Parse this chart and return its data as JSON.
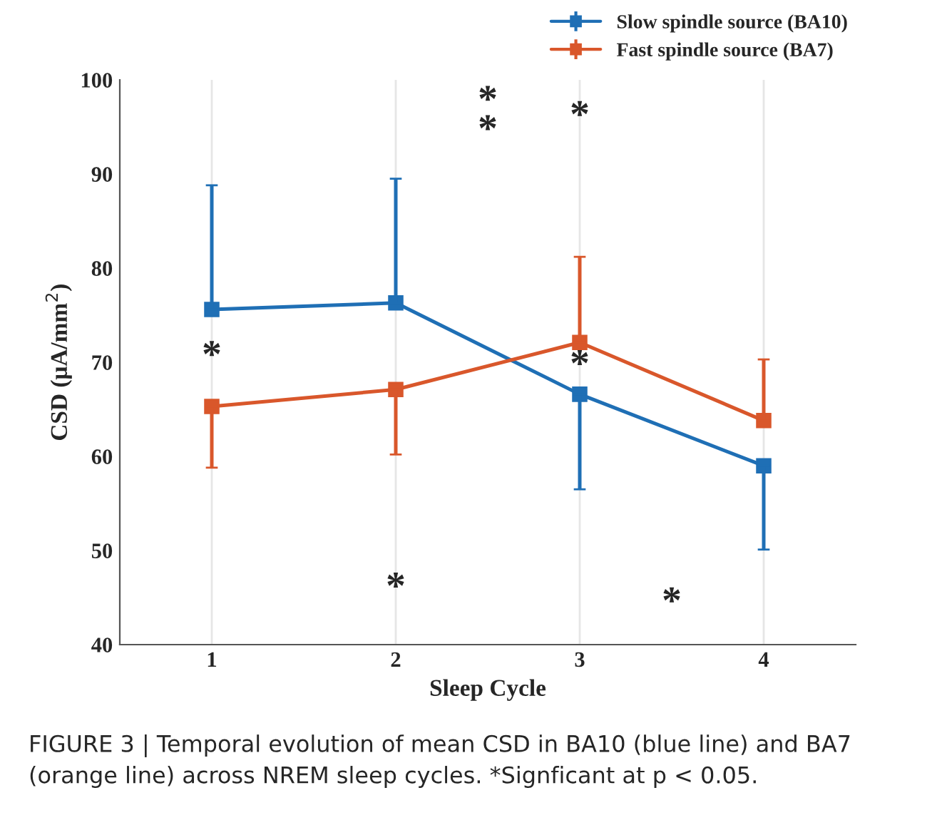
{
  "chart_data": {
    "type": "line",
    "xlabel": "Sleep Cycle",
    "ylabel": "CSD (μA/mm$^{2}$)",
    "x": [
      1,
      2,
      3,
      4
    ],
    "series": [
      {
        "name": "Slow spindle source (BA10)",
        "color": "#1f6fb5",
        "values": [
          75.6,
          76.3,
          66.6,
          59.0
        ],
        "errors": [
          [
            75.6,
            88.8
          ],
          [
            76.3,
            89.5
          ],
          [
            56.5,
            66.6
          ],
          [
            50.1,
            59.0
          ]
        ]
      },
      {
        "name": "Fast spindle source (BA7)",
        "color": "#d9572b",
        "values": [
          65.3,
          67.1,
          72.1,
          63.8
        ],
        "errors": [
          [
            58.8,
            65.3
          ],
          [
            60.2,
            67.1
          ],
          [
            72.1,
            81.2
          ],
          [
            63.8,
            70.3
          ]
        ]
      }
    ],
    "xlim": [
      0.5,
      4.5
    ],
    "xticks": [
      1,
      2,
      3,
      4
    ],
    "ylim": [
      40,
      100
    ],
    "yticks": [
      40,
      50,
      60,
      70,
      80,
      90,
      100
    ],
    "grid": "x",
    "legend": "top right",
    "marker": "square",
    "line_style": "solid",
    "annotations": [
      "*",
      "*",
      "*",
      "*",
      "*",
      "*",
      "*",
      "FIGURE 3 | Temporal evolution of mean CSD in BA10 (blue line) and BA7 (orange line) across NREM sleep cycles. *Signficant at p < 0.05."
    ]
  }
}
